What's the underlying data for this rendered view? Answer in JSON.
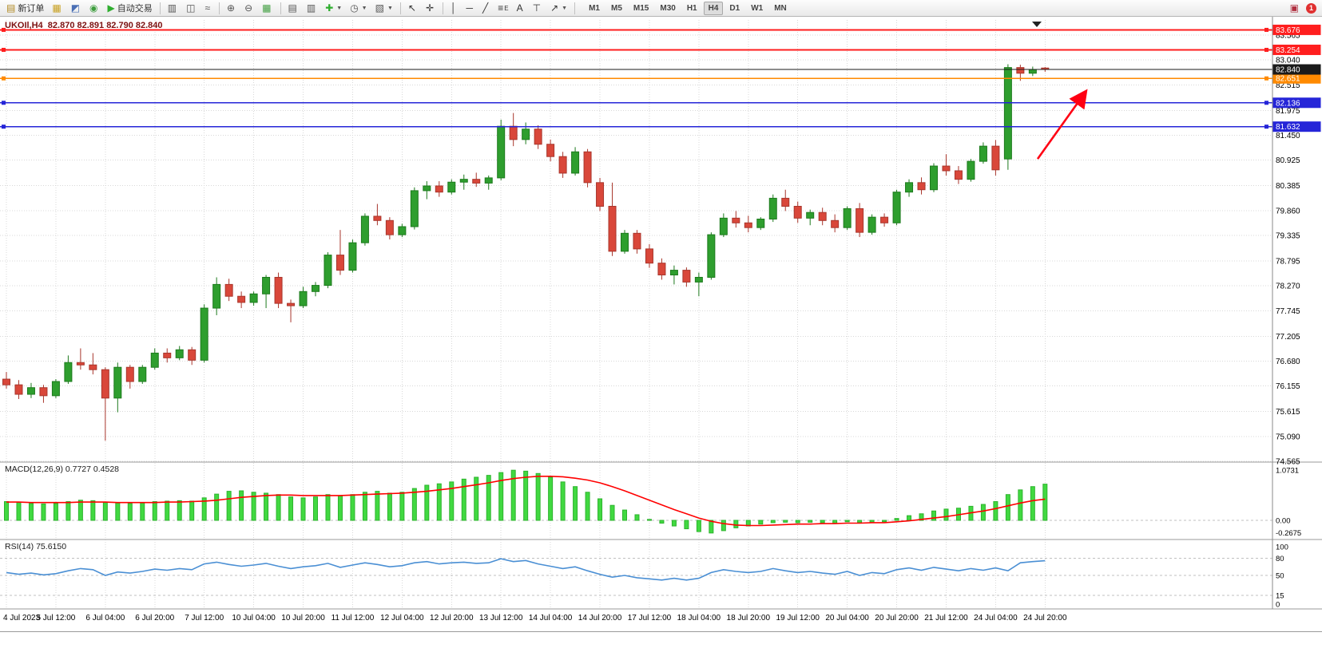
{
  "toolbar": {
    "items": [
      {
        "name": "new-order-button",
        "glyph": "▤",
        "color": "#b08820",
        "label": "新订单"
      },
      {
        "name": "market-watch-button",
        "glyph": "▦",
        "color": "#c8a020"
      },
      {
        "name": "navigator-button",
        "glyph": "◩",
        "color": "#4a6fb5"
      },
      {
        "name": "terminal-button",
        "glyph": "◉",
        "color": "#3f9e3f"
      },
      {
        "name": "autotrading-button",
        "glyph": "▶",
        "color": "#2fae2f",
        "label": "自动交易"
      },
      {
        "sep": true
      },
      {
        "name": "bar-chart-button",
        "glyph": "▥",
        "color": "#555555"
      },
      {
        "name": "candlestick-chart-button",
        "glyph": "◫",
        "color": "#555555"
      },
      {
        "name": "line-chart-button",
        "glyph": "≈",
        "color": "#555555"
      },
      {
        "sep": true
      },
      {
        "name": "zoom-in-button",
        "glyph": "⊕",
        "color": "#555555"
      },
      {
        "name": "zoom-out-button",
        "glyph": "⊖",
        "color": "#555555"
      },
      {
        "name": "tile-windows-button",
        "glyph": "▦",
        "color": "#3f9e3f"
      },
      {
        "sep": true
      },
      {
        "name": "arrange-windows-button",
        "glyph": "▤",
        "color": "#555555"
      },
      {
        "name": "auto-scroll-button",
        "glyph": "▥",
        "color": "#555555"
      },
      {
        "name": "indicators-button",
        "glyph": "✚",
        "color": "#2fae2f",
        "caret": true
      },
      {
        "name": "periods-button",
        "glyph": "◷",
        "color": "#555555",
        "caret": true
      },
      {
        "name": "templates-button",
        "glyph": "▧",
        "color": "#555555",
        "caret": true
      },
      {
        "sep": true
      },
      {
        "name": "cursor-button",
        "glyph": "↖",
        "color": "#333333"
      },
      {
        "name": "crosshair-button",
        "glyph": "✛",
        "color": "#333333"
      },
      {
        "sep": true
      },
      {
        "name": "vertical-line-button",
        "glyph": "│",
        "color": "#333333"
      },
      {
        "name": "horizontal-line-button",
        "glyph": "─",
        "color": "#333333"
      },
      {
        "name": "trendline-button",
        "glyph": "╱",
        "color": "#333333"
      },
      {
        "name": "fibonacci-button",
        "glyph": "≡",
        "color": "#333333",
        "sub": "E"
      },
      {
        "name": "text-button",
        "glyph": "A",
        "color": "#333333"
      },
      {
        "name": "text-label-button",
        "glyph": "⊤",
        "color": "#333333"
      },
      {
        "name": "arrows-button",
        "glyph": "↗",
        "color": "#333333",
        "caret": true
      },
      {
        "sep": true
      }
    ],
    "timeframes": [
      "M1",
      "M5",
      "M15",
      "M30",
      "H1",
      "H4",
      "D1",
      "W1",
      "MN"
    ],
    "active_timeframe": "H4",
    "chart-mode-glyph": "▣",
    "notification_count": "1"
  },
  "chart_data": [
    {
      "type": "candlestick",
      "symbol_period": "UKOIl,H4",
      "ohlc_display": "82.870 82.891 82.790 82.840",
      "title_line": "UKOIl,H4  82.870 82.891 82.790 82.840",
      "price_axis": {
        "gridlines": [
          "83.565",
          "83.040",
          "82.515",
          "81.975",
          "81.450",
          "80.925",
          "80.385",
          "79.860",
          "79.335",
          "78.795",
          "78.270",
          "77.745",
          "77.205",
          "76.680",
          "76.155",
          "75.615",
          "75.090",
          "74.565"
        ]
      },
      "x_labels": [
        "4 Jul 2023",
        "5 Jul 12:00",
        "6 Jul 04:00",
        "6 Jul 20:00",
        "7 Jul 12:00",
        "10 Jul 04:00",
        "10 Jul 20:00",
        "11 Jul 12:00",
        "12 Jul 04:00",
        "12 Jul 20:00",
        "13 Jul 12:00",
        "14 Jul 04:00",
        "14 Jul 20:00",
        "17 Jul 12:00",
        "18 Jul 04:00",
        "18 Jul 20:00",
        "19 Jul 12:00",
        "20 Jul 04:00",
        "20 Jul 20:00",
        "21 Jul 12:00",
        "24 Jul 04:00",
        "24 Jul 20:00"
      ],
      "candles_per_label": 4,
      "candles": [
        [
          76.3,
          76.45,
          76.1,
          76.18
        ],
        [
          76.18,
          76.28,
          75.88,
          75.98
        ],
        [
          75.98,
          76.22,
          75.9,
          76.12
        ],
        [
          76.12,
          76.18,
          75.8,
          75.95
        ],
        [
          75.95,
          76.3,
          75.9,
          76.25
        ],
        [
          76.25,
          76.8,
          76.2,
          76.65
        ],
        [
          76.65,
          76.95,
          76.5,
          76.6
        ],
        [
          76.6,
          76.85,
          76.4,
          76.5
        ],
        [
          76.5,
          76.55,
          75.0,
          75.9
        ],
        [
          75.9,
          76.65,
          75.6,
          76.55
        ],
        [
          76.55,
          76.6,
          76.1,
          76.25
        ],
        [
          76.25,
          76.6,
          76.2,
          76.55
        ],
        [
          76.55,
          76.95,
          76.5,
          76.85
        ],
        [
          76.85,
          76.95,
          76.65,
          76.75
        ],
        [
          76.75,
          77.0,
          76.7,
          76.92
        ],
        [
          76.92,
          76.98,
          76.6,
          76.7
        ],
        [
          76.7,
          77.88,
          76.65,
          77.8
        ],
        [
          77.8,
          78.45,
          77.65,
          78.3
        ],
        [
          78.3,
          78.42,
          77.95,
          78.05
        ],
        [
          78.05,
          78.15,
          77.8,
          77.92
        ],
        [
          77.92,
          78.15,
          77.85,
          78.1
        ],
        [
          78.1,
          78.5,
          77.8,
          78.45
        ],
        [
          78.45,
          78.55,
          77.8,
          77.9
        ],
        [
          77.9,
          77.98,
          77.5,
          77.85
        ],
        [
          77.85,
          78.25,
          77.8,
          78.15
        ],
        [
          78.15,
          78.35,
          78.05,
          78.28
        ],
        [
          78.28,
          78.98,
          78.22,
          78.92
        ],
        [
          78.92,
          79.45,
          78.5,
          78.6
        ],
        [
          78.6,
          79.25,
          78.55,
          79.18
        ],
        [
          79.18,
          79.8,
          79.12,
          79.74
        ],
        [
          79.74,
          80.0,
          79.55,
          79.65
        ],
        [
          79.65,
          79.72,
          79.25,
          79.35
        ],
        [
          79.35,
          79.58,
          79.3,
          79.52
        ],
        [
          79.52,
          80.35,
          79.46,
          80.28
        ],
        [
          80.28,
          80.48,
          80.1,
          80.38
        ],
        [
          80.38,
          80.48,
          80.15,
          80.25
        ],
        [
          80.25,
          80.52,
          80.2,
          80.46
        ],
        [
          80.46,
          80.62,
          80.3,
          80.52
        ],
        [
          80.52,
          80.66,
          80.36,
          80.44
        ],
        [
          80.44,
          80.6,
          80.3,
          80.55
        ],
        [
          80.55,
          81.78,
          80.5,
          81.64
        ],
        [
          81.64,
          81.92,
          81.22,
          81.36
        ],
        [
          81.36,
          81.72,
          81.26,
          81.58
        ],
        [
          81.58,
          81.66,
          81.16,
          81.26
        ],
        [
          81.26,
          81.36,
          80.9,
          81.0
        ],
        [
          81.0,
          81.1,
          80.55,
          80.65
        ],
        [
          80.65,
          81.2,
          80.6,
          81.1
        ],
        [
          81.1,
          81.16,
          80.35,
          80.45
        ],
        [
          80.45,
          80.55,
          79.85,
          79.95
        ],
        [
          79.95,
          80.45,
          78.9,
          79.0
        ],
        [
          79.0,
          79.45,
          78.95,
          79.38
        ],
        [
          79.38,
          79.45,
          78.95,
          79.05
        ],
        [
          79.05,
          79.15,
          78.65,
          78.75
        ],
        [
          78.75,
          78.85,
          78.4,
          78.5
        ],
        [
          78.5,
          78.7,
          78.3,
          78.6
        ],
        [
          78.6,
          78.66,
          78.25,
          78.35
        ],
        [
          78.35,
          78.55,
          78.05,
          78.45
        ],
        [
          78.45,
          79.4,
          78.4,
          79.35
        ],
        [
          79.35,
          79.8,
          79.3,
          79.7
        ],
        [
          79.7,
          79.85,
          79.5,
          79.6
        ],
        [
          79.6,
          79.75,
          79.4,
          79.5
        ],
        [
          79.5,
          79.72,
          79.45,
          79.68
        ],
        [
          79.68,
          80.2,
          79.62,
          80.12
        ],
        [
          80.12,
          80.3,
          79.85,
          79.95
        ],
        [
          79.95,
          80.05,
          79.6,
          79.7
        ],
        [
          79.7,
          79.88,
          79.55,
          79.82
        ],
        [
          79.82,
          79.92,
          79.55,
          79.65
        ],
        [
          79.65,
          79.78,
          79.4,
          79.5
        ],
        [
          79.5,
          79.95,
          79.45,
          79.9
        ],
        [
          79.9,
          80.02,
          79.3,
          79.4
        ],
        [
          79.4,
          79.78,
          79.35,
          79.72
        ],
        [
          79.72,
          79.8,
          79.52,
          79.6
        ],
        [
          79.6,
          80.3,
          79.55,
          80.25
        ],
        [
          80.25,
          80.52,
          80.15,
          80.45
        ],
        [
          80.45,
          80.56,
          80.2,
          80.3
        ],
        [
          80.3,
          80.86,
          80.25,
          80.8
        ],
        [
          80.8,
          81.05,
          80.6,
          80.7
        ],
        [
          80.7,
          80.8,
          80.42,
          80.52
        ],
        [
          80.52,
          80.95,
          80.47,
          80.9
        ],
        [
          80.9,
          81.3,
          80.85,
          81.22
        ],
        [
          81.22,
          81.35,
          80.6,
          80.72
        ],
        [
          80.95,
          82.95,
          80.72,
          82.88
        ],
        [
          82.88,
          82.94,
          82.6,
          82.76
        ],
        [
          82.76,
          82.9,
          82.7,
          82.84
        ],
        [
          82.87,
          82.891,
          82.79,
          82.84
        ]
      ],
      "hlines": [
        {
          "price": 83.676,
          "label": "83.676",
          "color": "#ff1e1e"
        },
        {
          "price": 83.254,
          "label": "83.254",
          "color": "#ff1e1e"
        },
        {
          "price": 82.651,
          "label": "82.651",
          "color": "#ff8a00"
        },
        {
          "price": 82.136,
          "label": "82.136",
          "color": "#2525d8"
        },
        {
          "price": 81.632,
          "label": "81.632",
          "color": "#2525d8"
        }
      ],
      "current_price": {
        "value": 82.84,
        "label": "82.840",
        "line_color": "#1a1a1a"
      },
      "arrow_annotation": {
        "from_price": 80.95,
        "to_price": 82.32,
        "color": "#ff0013"
      },
      "colors": {
        "up": "#2e9e2e",
        "down": "#d9473a",
        "background": "#ffffff",
        "grid": "#d8d8d8"
      }
    },
    {
      "type": "bar",
      "name": "MACD",
      "label": "MACD(12,26,9) 0.7727 0.4528",
      "params": "12,26,9",
      "value_main": 0.7727,
      "value_signal": 0.4528,
      "axis_labels": [
        "1.0731",
        "0.00",
        "-0.2675"
      ],
      "histogram": [
        0.4,
        0.38,
        0.36,
        0.35,
        0.36,
        0.4,
        0.43,
        0.42,
        0.38,
        0.37,
        0.36,
        0.37,
        0.4,
        0.41,
        0.42,
        0.41,
        0.48,
        0.56,
        0.62,
        0.63,
        0.6,
        0.58,
        0.55,
        0.5,
        0.48,
        0.5,
        0.55,
        0.52,
        0.55,
        0.6,
        0.62,
        0.58,
        0.6,
        0.68,
        0.75,
        0.78,
        0.82,
        0.88,
        0.92,
        0.96,
        1.02,
        1.07,
        1.05,
        1.0,
        0.92,
        0.82,
        0.72,
        0.6,
        0.46,
        0.32,
        0.22,
        0.12,
        0.02,
        -0.06,
        -0.12,
        -0.18,
        -0.24,
        -0.27,
        -0.22,
        -0.16,
        -0.12,
        -0.08,
        -0.05,
        -0.04,
        -0.05,
        -0.04,
        -0.05,
        -0.06,
        -0.03,
        -0.05,
        -0.04,
        -0.03,
        0.04,
        0.1,
        0.14,
        0.2,
        0.24,
        0.26,
        0.3,
        0.34,
        0.4,
        0.55,
        0.65,
        0.72,
        0.7727
      ],
      "signal": [
        0.39,
        0.39,
        0.38,
        0.38,
        0.38,
        0.38,
        0.39,
        0.39,
        0.39,
        0.38,
        0.38,
        0.38,
        0.38,
        0.39,
        0.39,
        0.4,
        0.41,
        0.43,
        0.46,
        0.49,
        0.51,
        0.53,
        0.54,
        0.54,
        0.53,
        0.53,
        0.53,
        0.53,
        0.54,
        0.55,
        0.56,
        0.57,
        0.58,
        0.6,
        0.62,
        0.65,
        0.68,
        0.72,
        0.76,
        0.8,
        0.85,
        0.89,
        0.92,
        0.94,
        0.94,
        0.93,
        0.9,
        0.86,
        0.8,
        0.72,
        0.63,
        0.53,
        0.43,
        0.33,
        0.23,
        0.14,
        0.05,
        -0.02,
        -0.07,
        -0.1,
        -0.11,
        -0.11,
        -0.1,
        -0.09,
        -0.08,
        -0.08,
        -0.07,
        -0.07,
        -0.06,
        -0.06,
        -0.05,
        -0.05,
        -0.03,
        -0.01,
        0.02,
        0.05,
        0.08,
        0.12,
        0.16,
        0.2,
        0.25,
        0.31,
        0.37,
        0.42,
        0.4528
      ],
      "colors": {
        "histogram": "#41d941",
        "signal": "#ff0000"
      }
    },
    {
      "type": "line",
      "name": "RSI",
      "label": "RSI(14) 75.6150",
      "value": 75.615,
      "axis_labels": [
        "100",
        "80",
        "50",
        "15",
        "0"
      ],
      "levels": [
        80,
        50,
        15
      ],
      "ylim": [
        0,
        100
      ],
      "values": [
        55,
        52,
        54,
        51,
        53,
        58,
        62,
        60,
        50,
        56,
        54,
        57,
        61,
        59,
        62,
        60,
        70,
        73,
        69,
        66,
        68,
        71,
        66,
        62,
        65,
        67,
        71,
        64,
        68,
        72,
        69,
        65,
        67,
        72,
        74,
        70,
        72,
        73,
        71,
        72,
        79,
        74,
        76,
        70,
        66,
        62,
        65,
        58,
        52,
        47,
        50,
        46,
        44,
        42,
        45,
        42,
        45,
        55,
        60,
        57,
        55,
        57,
        62,
        58,
        55,
        57,
        54,
        52,
        57,
        50,
        55,
        53,
        60,
        63,
        59,
        64,
        61,
        58,
        62,
        59,
        63,
        58,
        72,
        74,
        75.615
      ],
      "color": "#4a8fd4"
    }
  ]
}
